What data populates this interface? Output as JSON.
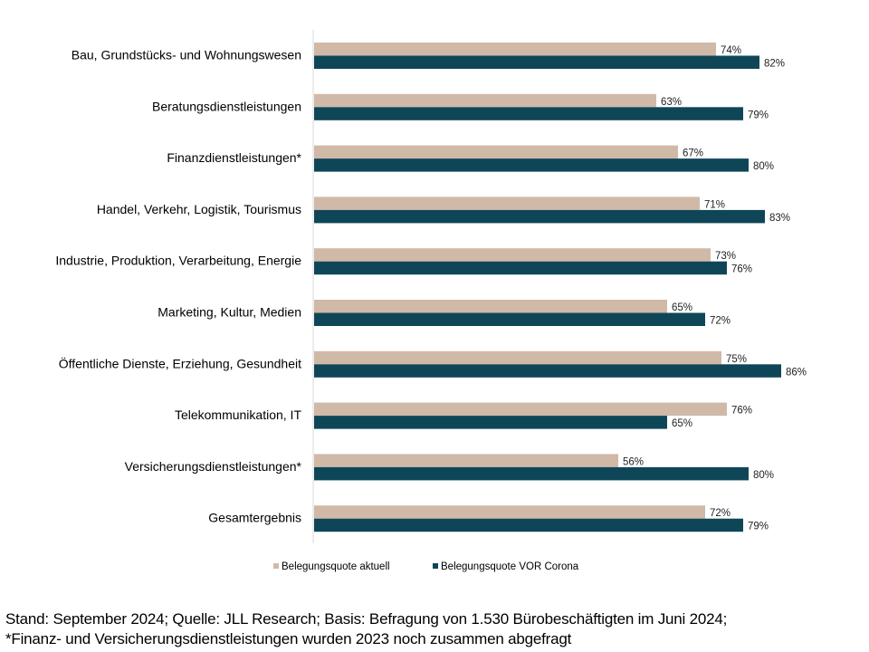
{
  "chart_data": {
    "type": "bar",
    "orientation": "horizontal",
    "categories": [
      "Bau, Grundstücks- und Wohnungswesen",
      "Beratungsdienstleistungen",
      "Finanzdienstleistungen*",
      "Handel, Verkehr, Logistik, Tourismus",
      "Industrie, Produktion, Verarbeitung, Energie",
      "Marketing, Kultur, Medien",
      "Öffentliche Dienste, Erziehung, Gesundheit",
      "Telekommunikation, IT",
      "Versicherungsdienstleistungen*",
      "Gesamtergebnis"
    ],
    "series": [
      {
        "name": "Belegungsquote aktuell",
        "color": "#d0b9a7",
        "values": [
          74,
          63,
          67,
          71,
          73,
          65,
          75,
          76,
          56,
          72
        ],
        "labels": [
          "74%",
          "63%",
          "67%",
          "71%",
          "73%",
          "65%",
          "75%",
          "76%",
          "56%",
          "72%"
        ]
      },
      {
        "name": "Belegungsquote VOR Corona",
        "color": "#0e4658",
        "values": [
          82,
          79,
          80,
          83,
          76,
          72,
          86,
          65,
          80,
          79
        ],
        "labels": [
          "82%",
          "79%",
          "80%",
          "83%",
          "76%",
          "72%",
          "86%",
          "65%",
          "80%",
          "79%"
        ]
      }
    ],
    "xlim": [
      0,
      100
    ],
    "legend_position": "bottom",
    "grid": false
  },
  "footnote": {
    "line1": "Stand: September 2024; Quelle: JLL Research; Basis: Befragung von 1.530 Bürobeschäftigten im Juni 2024;",
    "line2": "*Finanz- und Versicherungsdienstleistungen wurden 2023 noch zusammen abgefragt"
  }
}
